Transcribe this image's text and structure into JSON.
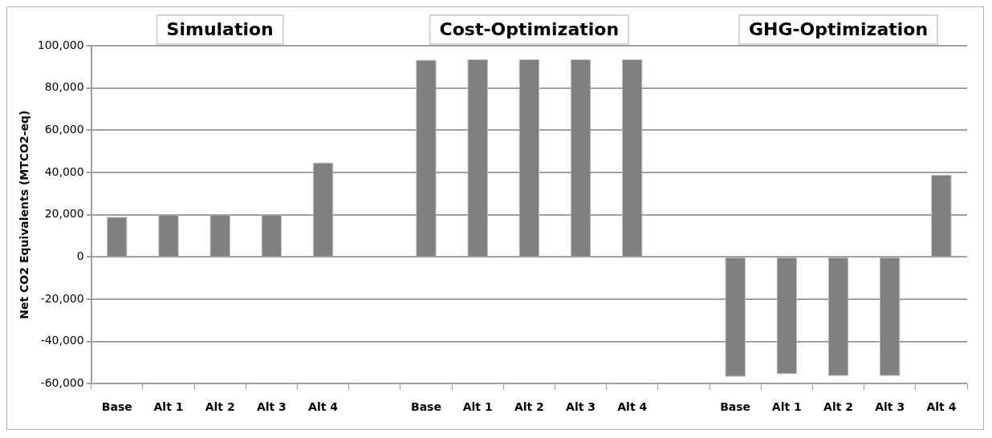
{
  "chart_data": {
    "type": "bar",
    "ylabel": "Net CO2 Equivalents (MTCO2-eq)",
    "annotations": [
      "Simulation",
      "Cost-Optimization",
      "GHG-Optimization"
    ],
    "categories": [
      "Base",
      "Alt 1",
      "Alt 2",
      "Alt 3",
      "Alt 4",
      null,
      "Base",
      "Alt 1",
      "Alt 2",
      "Alt 3",
      "Alt 4",
      null,
      "Base",
      "Alt 1",
      "Alt 2",
      "Alt 3",
      "Alt 4"
    ],
    "values": [
      19000,
      20000,
      20000,
      20000,
      44700,
      null,
      93400,
      93600,
      93600,
      93600,
      93600,
      null,
      -56800,
      -55600,
      -56400,
      -56400,
      38900
    ],
    "color": "#808080",
    "ylim": [
      -60000,
      100000
    ],
    "yticks": [
      {
        "value": -60000,
        "label": "-60,000"
      },
      {
        "value": -40000,
        "label": "-40,000"
      },
      {
        "value": -20000,
        "label": "-20,000"
      },
      {
        "value": 0,
        "label": "0"
      },
      {
        "value": 20000,
        "label": "20,000"
      },
      {
        "value": 40000,
        "label": "40,000"
      },
      {
        "value": 60000,
        "label": "60,000"
      },
      {
        "value": 80000,
        "label": "80,000"
      },
      {
        "value": 100000,
        "label": "100,000"
      }
    ],
    "grid": "y",
    "legend": false
  }
}
